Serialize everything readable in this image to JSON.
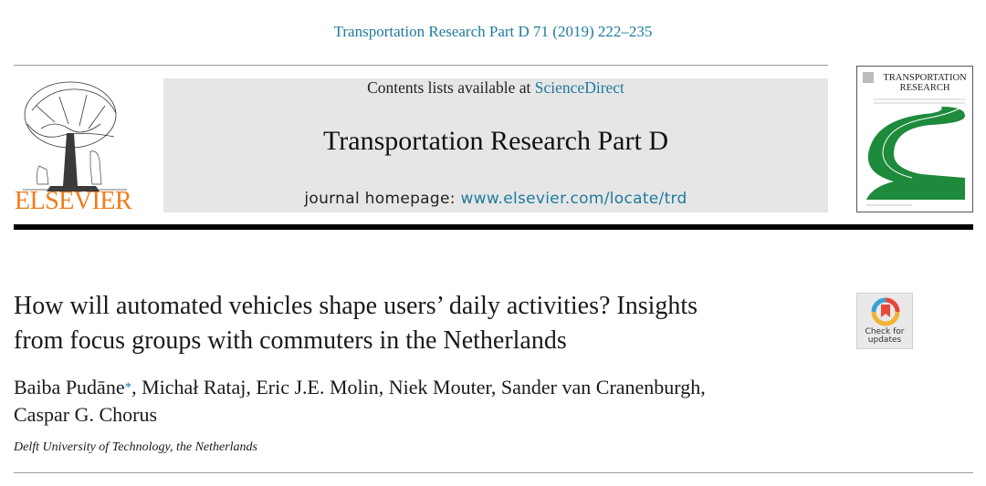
{
  "header": {
    "citation": "Transportation Research Part D 71 (2019) 222–235"
  },
  "publisher": {
    "name": "ELSEVIER",
    "brand_color": "#f07c19"
  },
  "banner": {
    "contents_prefix": "Contents lists available at ",
    "contents_link": "ScienceDirect",
    "journal_name": "Transportation Research Part D",
    "homepage_prefix": "journal homepage: ",
    "homepage_link": "www.elsevier.com/locate/trd",
    "background": "#e6e6e6",
    "link_color": "#1f7a9c"
  },
  "cover": {
    "title_line1": "TRANSPORTATION",
    "title_line2": "RESEARCH",
    "road_color": "#1e8a3c"
  },
  "article": {
    "title_line1": "How will automated vehicles shape users’ daily activities? Insights",
    "title_line2": "from focus groups with commuters in the Netherlands",
    "authors_line1_first": "Baiba Pudāne",
    "corresponding_mark": "*",
    "authors_line1_rest": ", Michał Rataj, Eric J.E. Molin, Niek Mouter, Sander van Cranenburgh,",
    "authors_line2": "Caspar G. Chorus",
    "affiliation": "Delft University of Technology, the Netherlands"
  },
  "crossmark": {
    "line1": "Check for",
    "line2": "updates"
  }
}
